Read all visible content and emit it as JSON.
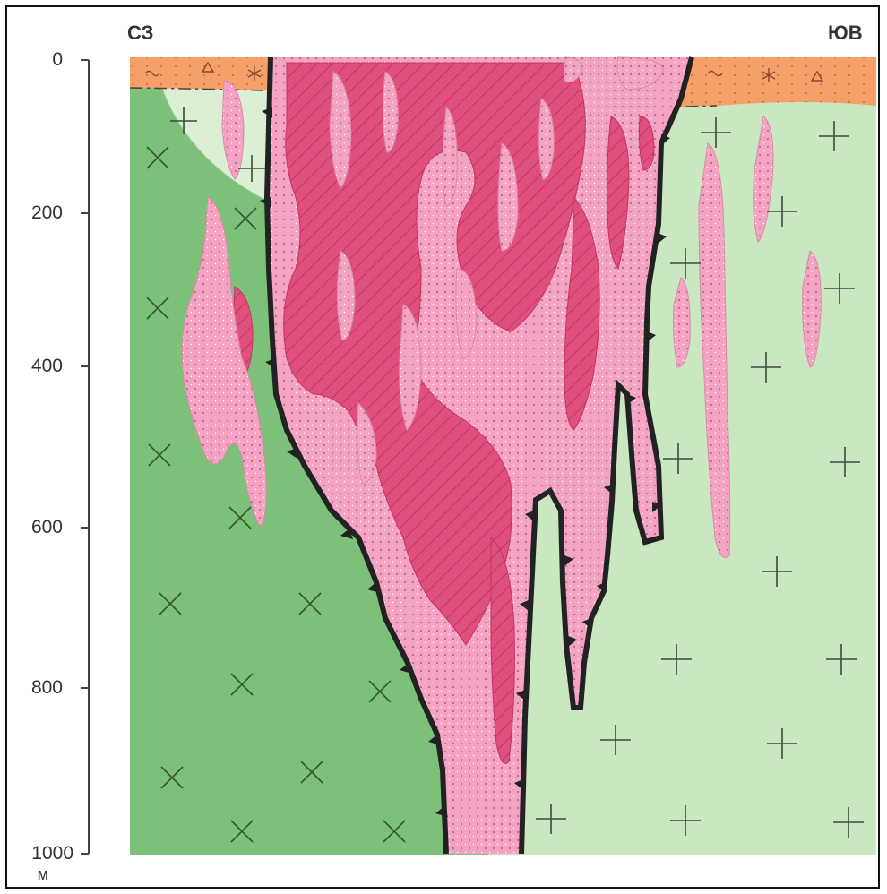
{
  "direction_left": "СЗ",
  "direction_right": "ЮВ",
  "depth_ticks": [
    "0",
    "200",
    "400",
    "600",
    "800",
    "1000"
  ],
  "depth_unit": "м",
  "colors": {
    "host_dark": "#7dc07a",
    "host_light": "#c9e7c0",
    "host_pale": "#dcefd4",
    "cover": "#f4a068",
    "breccia": "#f4a3c3",
    "ore_core": "#e0507e",
    "contact": "#222222"
  }
}
